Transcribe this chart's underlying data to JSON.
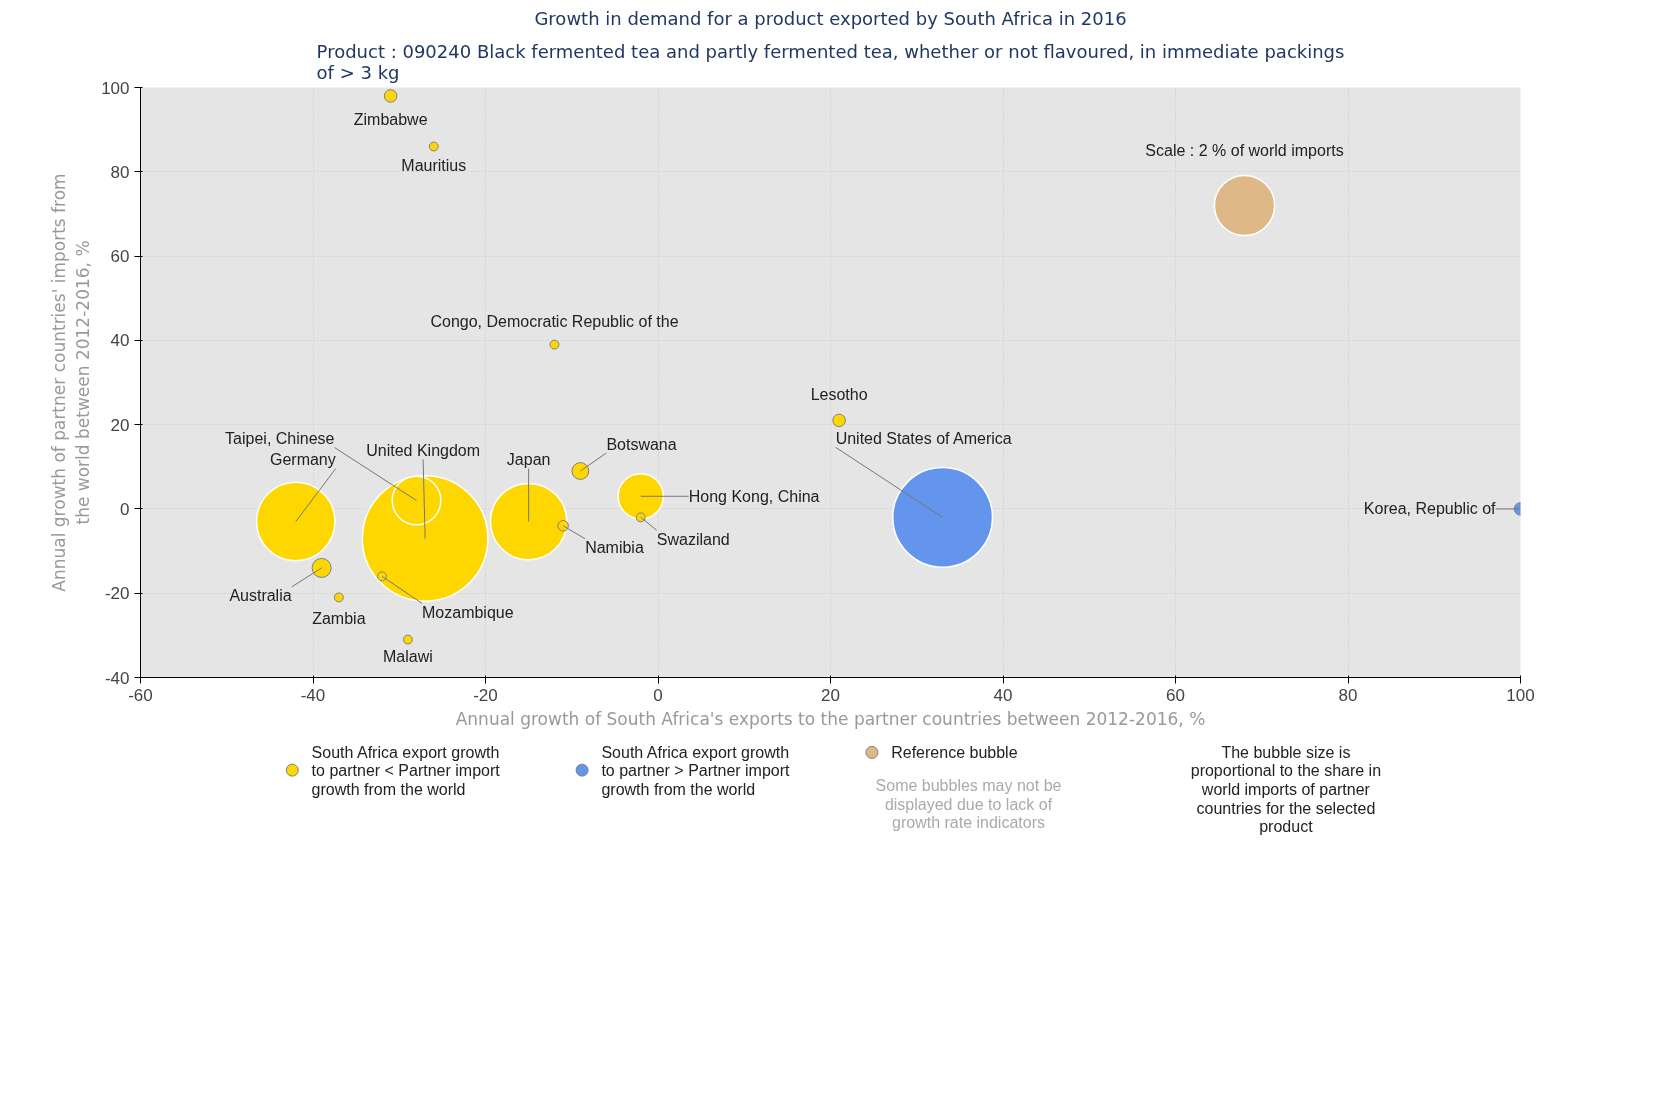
{
  "chart_data": {
    "type": "bubble",
    "title": "Growth in demand for a product exported by South Africa in 2016",
    "subtitle": "Product : 090240 Black fermented tea and partly fermented tea, whether or not flavoured, in immediate packings of > 3 kg",
    "xlabel": "Annual growth of South Africa's exports to the partner countries between 2012-2016, %",
    "ylabel": "Annual growth of partner countries' imports from the world between 2012-2016, %",
    "series": [
      {
        "name": "South Africa export growth to partner < Partner import growth from the world",
        "color": "#ffd700",
        "x": [
          -31,
          -26,
          -12,
          21,
          -42,
          -28,
          -27,
          -15,
          -9,
          -2,
          -2,
          -11,
          -39,
          -37,
          -32,
          -29
        ],
        "values": [
          98,
          86,
          39,
          21,
          -3,
          2,
          -7,
          -3,
          9,
          3,
          -2,
          -4,
          -14,
          -21,
          -16,
          -31
        ],
        "sizes": [
          0.01,
          0.005,
          0.005,
          0.01,
          0.39,
          0.15,
          1,
          0.37,
          0.018,
          0.13,
          0.005,
          0.007,
          0.023,
          0.005,
          0.005,
          0.005
        ]
      },
      {
        "name": "South Africa export growth to partner > Partner import growth from the world",
        "color": "#6495ed",
        "x": [
          33,
          100
        ],
        "values": [
          -2,
          0
        ],
        "sizes": [
          0.63,
          0.01
        ]
      },
      {
        "name": "Reference bubble",
        "color": "#deb887",
        "x": [
          68
        ],
        "values": [
          72
        ],
        "sizes": [
          0.23
        ]
      }
    ],
    "xlim": [
      -60,
      100
    ],
    "ylim": [
      -40,
      100
    ],
    "xticks": [
      -60,
      -40,
      -20,
      0,
      20,
      40,
      60,
      80,
      100
    ],
    "yticks": [
      -40,
      -20,
      0,
      20,
      40,
      60,
      80,
      100
    ],
    "grid": true,
    "legend": "bottom",
    "annotations": [
      {
        "text": "Zimbabwe",
        "x": -31,
        "y": 98
      },
      {
        "text": "Mauritius",
        "x": -26,
        "y": 86
      },
      {
        "text": "Congo, Democratic Republic of the",
        "x": -12,
        "y": 39
      },
      {
        "text": "Lesotho",
        "x": 21,
        "y": 21
      },
      {
        "text": "Germany",
        "x": -42,
        "y": -3
      },
      {
        "text": "Taipei, Chinese",
        "x": -28,
        "y": 2
      },
      {
        "text": "United Kingdom",
        "x": -27,
        "y": -7
      },
      {
        "text": "Japan",
        "x": -15,
        "y": -3
      },
      {
        "text": "Botswana",
        "x": -9,
        "y": 9
      },
      {
        "text": "Hong Kong, China",
        "x": -2,
        "y": 3
      },
      {
        "text": "Swaziland",
        "x": -2,
        "y": -2
      },
      {
        "text": "Namibia",
        "x": -11,
        "y": -4
      },
      {
        "text": "Australia",
        "x": -39,
        "y": -14
      },
      {
        "text": "Zambia",
        "x": -37,
        "y": -21
      },
      {
        "text": "Mozambique",
        "x": -32,
        "y": -16
      },
      {
        "text": "Malawi",
        "x": -29,
        "y": -31
      },
      {
        "text": "United States of America",
        "x": 33,
        "y": -2
      },
      {
        "text": "Korea, Republic of",
        "x": 100,
        "y": 0
      },
      {
        "text": "Scale : 2 % of world imports",
        "x": 68,
        "y": 72
      },
      "Some bubbles may not be displayed due to lack of growth rate indicators",
      "The bubble size is proportional to the share in world imports of partner countries for the selected product"
    ]
  }
}
